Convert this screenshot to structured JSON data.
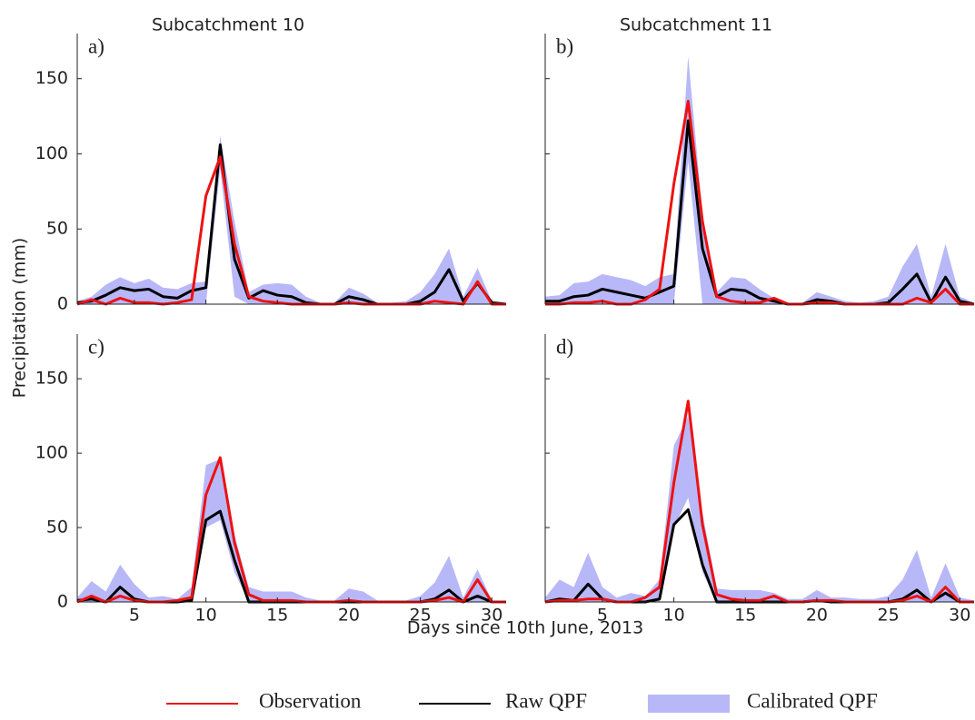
{
  "ylabel": "Precipitation (mm)",
  "xlabel": "Days since 10th June, 2013",
  "chart_data": [
    {
      "type": "line",
      "label": "a)",
      "title": "Subcatchment 10",
      "x": [
        1,
        2,
        3,
        4,
        5,
        6,
        7,
        8,
        9,
        10,
        11,
        12,
        13,
        14,
        15,
        16,
        17,
        18,
        19,
        20,
        21,
        22,
        23,
        24,
        25,
        26,
        27,
        28,
        29,
        30,
        31
      ],
      "xlim": [
        1,
        31
      ],
      "xticks": [
        5,
        10,
        15,
        20,
        25,
        30
      ],
      "ylim": [
        0,
        180
      ],
      "yticks": [
        0,
        50,
        100,
        150
      ],
      "series": [
        {
          "name": "Observation",
          "color": "#ee1111",
          "values": [
            0,
            3,
            0,
            4,
            1,
            1,
            0,
            1,
            3,
            72,
            98,
            40,
            5,
            2,
            1,
            0,
            0,
            0,
            0,
            1,
            0,
            0,
            0,
            0,
            0,
            2,
            1,
            0,
            15,
            0,
            0
          ]
        },
        {
          "name": "Raw QPF",
          "color": "#000000",
          "values": [
            1,
            2,
            6,
            11,
            9,
            10,
            5,
            4,
            9,
            11,
            106,
            30,
            4,
            9,
            6,
            5,
            1,
            0,
            0,
            5,
            3,
            0,
            0,
            0,
            2,
            8,
            23,
            2,
            14,
            1,
            0
          ]
        },
        {
          "name": "Calibrated QPF",
          "color": "#b8b8f8",
          "lower": [
            0,
            0,
            0,
            0,
            0,
            0,
            0,
            0,
            0,
            0,
            90,
            5,
            0,
            0,
            0,
            0,
            0,
            0,
            0,
            0,
            0,
            0,
            0,
            0,
            0,
            0,
            0,
            0,
            0,
            0,
            0
          ],
          "upper": [
            2,
            5,
            13,
            18,
            14,
            17,
            11,
            10,
            14,
            15,
            112,
            55,
            8,
            13,
            14,
            13,
            5,
            1,
            1,
            11,
            7,
            1,
            1,
            2,
            8,
            20,
            37,
            5,
            24,
            2,
            1
          ]
        }
      ]
    },
    {
      "type": "line",
      "label": "b)",
      "title": "Subcatchment 11",
      "x": [
        1,
        2,
        3,
        4,
        5,
        6,
        7,
        8,
        9,
        10,
        11,
        12,
        13,
        14,
        15,
        16,
        17,
        18,
        19,
        20,
        21,
        22,
        23,
        24,
        25,
        26,
        27,
        28,
        29,
        30,
        31
      ],
      "xlim": [
        1,
        31
      ],
      "xticks": [
        5,
        10,
        15,
        20,
        25,
        30
      ],
      "ylim": [
        0,
        180
      ],
      "yticks": [
        0,
        50,
        100,
        150
      ],
      "series": [
        {
          "name": "Observation",
          "color": "#ee1111",
          "values": [
            0,
            0,
            1,
            1,
            2,
            0,
            0,
            3,
            10,
            80,
            135,
            55,
            5,
            2,
            1,
            1,
            4,
            0,
            0,
            1,
            1,
            0,
            0,
            0,
            0,
            0,
            4,
            1,
            10,
            0,
            0
          ]
        },
        {
          "name": "Raw QPF",
          "color": "#000000",
          "values": [
            2,
            2,
            5,
            6,
            10,
            8,
            6,
            4,
            8,
            12,
            122,
            37,
            5,
            10,
            9,
            4,
            2,
            0,
            0,
            3,
            2,
            0,
            0,
            0,
            1,
            10,
            20,
            1,
            18,
            2,
            0
          ]
        },
        {
          "name": "Calibrated QPF",
          "color": "#b8b8f8",
          "lower": [
            0,
            0,
            0,
            0,
            0,
            0,
            0,
            0,
            0,
            0,
            95,
            0,
            0,
            0,
            0,
            0,
            0,
            0,
            0,
            0,
            0,
            0,
            0,
            0,
            0,
            0,
            0,
            0,
            0,
            0,
            0
          ],
          "upper": [
            5,
            6,
            14,
            15,
            20,
            18,
            16,
            12,
            18,
            20,
            165,
            60,
            8,
            18,
            17,
            10,
            4,
            1,
            1,
            8,
            5,
            2,
            1,
            2,
            5,
            25,
            40,
            5,
            40,
            5,
            1
          ]
        }
      ]
    },
    {
      "type": "line",
      "label": "c)",
      "x": [
        1,
        2,
        3,
        4,
        5,
        6,
        7,
        8,
        9,
        10,
        11,
        12,
        13,
        14,
        15,
        16,
        17,
        18,
        19,
        20,
        21,
        22,
        23,
        24,
        25,
        26,
        27,
        28,
        29,
        30,
        31
      ],
      "xlim": [
        1,
        31
      ],
      "xticks": [
        5,
        10,
        15,
        20,
        25,
        30
      ],
      "ylim": [
        0,
        180
      ],
      "yticks": [
        0,
        50,
        100,
        150
      ],
      "series": [
        {
          "name": "Observation",
          "color": "#ee1111",
          "values": [
            0,
            4,
            0,
            4,
            1,
            0,
            0,
            1,
            3,
            72,
            97,
            40,
            5,
            1,
            1,
            1,
            0,
            0,
            0,
            1,
            0,
            0,
            0,
            0,
            0,
            1,
            3,
            0,
            15,
            0,
            0
          ]
        },
        {
          "name": "Raw QPF",
          "color": "#000000",
          "values": [
            1,
            2,
            0,
            10,
            2,
            0,
            0,
            0,
            1,
            55,
            61,
            28,
            0,
            0,
            0,
            0,
            0,
            0,
            0,
            0,
            0,
            0,
            0,
            0,
            0,
            2,
            8,
            0,
            4,
            0,
            0
          ]
        },
        {
          "name": "Calibrated QPF",
          "color": "#b8b8f8",
          "lower": [
            0,
            0,
            0,
            0,
            0,
            0,
            0,
            0,
            0,
            50,
            55,
            20,
            0,
            0,
            0,
            0,
            0,
            0,
            0,
            0,
            0,
            0,
            0,
            0,
            0,
            0,
            0,
            0,
            0,
            0,
            0
          ],
          "upper": [
            3,
            14,
            7,
            25,
            12,
            3,
            4,
            2,
            10,
            92,
            96,
            45,
            10,
            7,
            7,
            7,
            3,
            1,
            1,
            9,
            7,
            1,
            1,
            1,
            4,
            13,
            31,
            3,
            22,
            1,
            1
          ]
        }
      ]
    },
    {
      "type": "line",
      "label": "d)",
      "x": [
        1,
        2,
        3,
        4,
        5,
        6,
        7,
        8,
        9,
        10,
        11,
        12,
        13,
        14,
        15,
        16,
        17,
        18,
        19,
        20,
        21,
        22,
        23,
        24,
        25,
        26,
        27,
        28,
        29,
        30,
        31
      ],
      "xlim": [
        1,
        31
      ],
      "xticks": [
        5,
        10,
        15,
        20,
        25,
        30
      ],
      "ylim": [
        0,
        180
      ],
      "yticks": [
        0,
        50,
        100,
        150
      ],
      "series": [
        {
          "name": "Observation",
          "color": "#ee1111",
          "values": [
            0,
            1,
            1,
            2,
            2,
            0,
            0,
            3,
            10,
            80,
            135,
            52,
            5,
            2,
            1,
            1,
            4,
            0,
            0,
            1,
            1,
            0,
            0,
            0,
            0,
            1,
            4,
            0,
            10,
            0,
            0
          ]
        },
        {
          "name": "Raw QPF",
          "color": "#000000",
          "values": [
            0,
            2,
            1,
            12,
            2,
            0,
            0,
            0,
            2,
            52,
            62,
            25,
            0,
            0,
            0,
            0,
            0,
            0,
            0,
            1,
            0,
            0,
            0,
            0,
            0,
            2,
            8,
            0,
            6,
            0,
            0
          ]
        },
        {
          "name": "Calibrated QPF",
          "color": "#b8b8f8",
          "lower": [
            0,
            0,
            0,
            0,
            0,
            0,
            0,
            0,
            0,
            50,
            70,
            20,
            0,
            0,
            0,
            0,
            0,
            0,
            0,
            0,
            0,
            0,
            0,
            0,
            0,
            0,
            0,
            0,
            0,
            0,
            0
          ],
          "upper": [
            3,
            15,
            10,
            33,
            10,
            3,
            6,
            4,
            15,
            105,
            125,
            60,
            9,
            8,
            8,
            8,
            6,
            2,
            2,
            8,
            3,
            3,
            2,
            2,
            4,
            15,
            35,
            3,
            26,
            3,
            1
          ]
        }
      ]
    }
  ]
}
